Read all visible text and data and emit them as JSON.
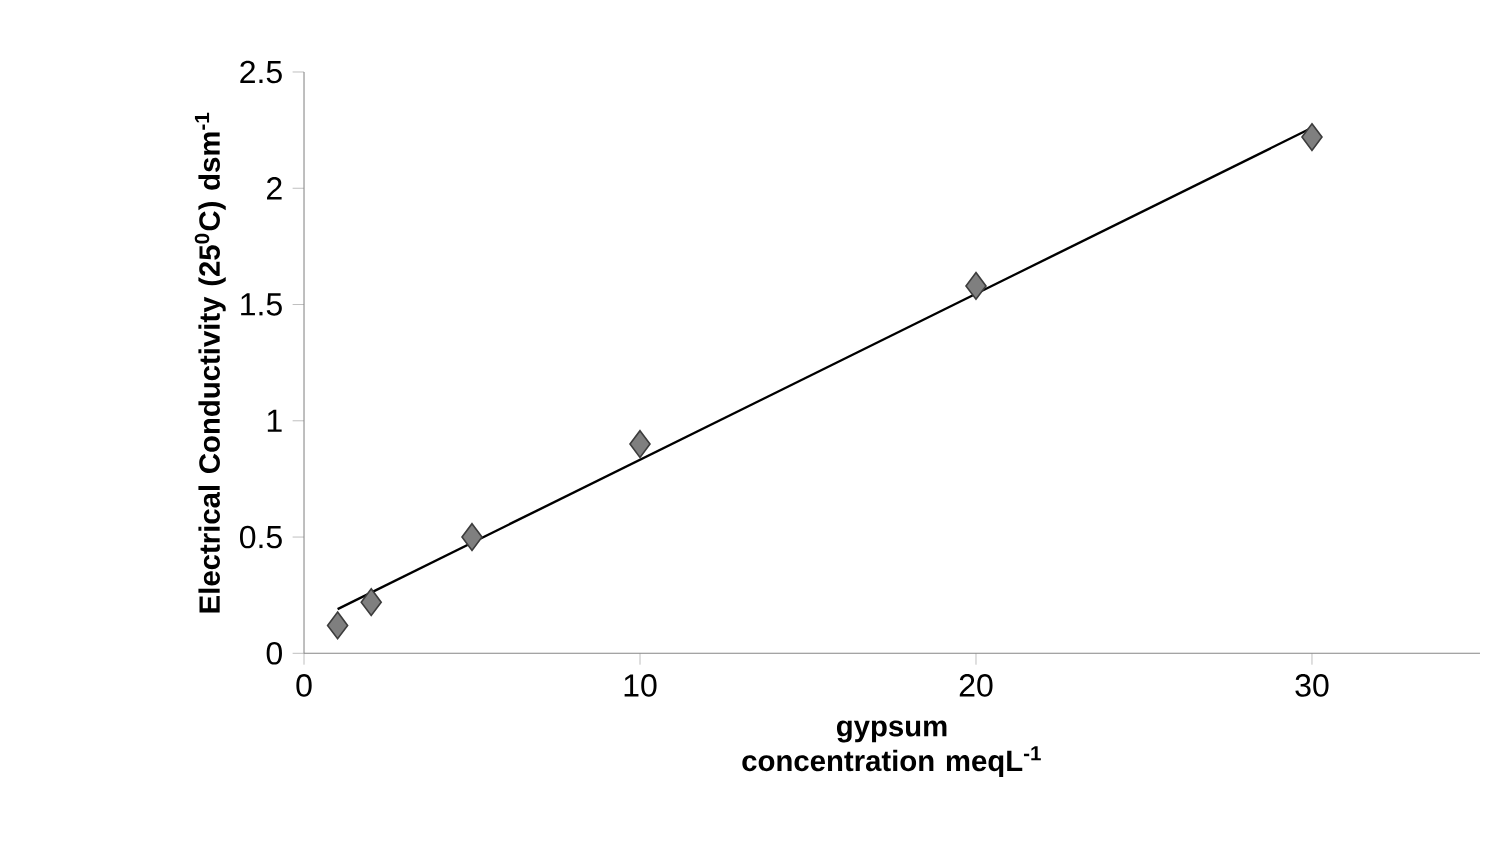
{
  "chart_data": {
    "type": "scatter",
    "xlabel": "gypsum concentration meqL$^{-1}$",
    "ylabel": "Electrical Conductivity (25$^{0}$C) dsm$^{-1}$",
    "xlim": [
      0,
      35
    ],
    "xticks": [
      0,
      10,
      20,
      30
    ],
    "ylim": [
      0,
      2.5
    ],
    "yticks": [
      0,
      0.5,
      1,
      1.5,
      2,
      2.5
    ],
    "grid": false,
    "series": [
      {
        "x": [
          1,
          2,
          5,
          10,
          20,
          30
        ],
        "values": [
          0.12,
          0.22,
          0.5,
          0.9,
          1.58,
          2.22
        ],
        "color": "#7f7f7f",
        "marker": "diamond"
      },
      {
        "type": "line",
        "x": [
          1,
          30
        ],
        "values": [
          0.19,
          2.26
        ],
        "color": "#000000"
      }
    ]
  }
}
